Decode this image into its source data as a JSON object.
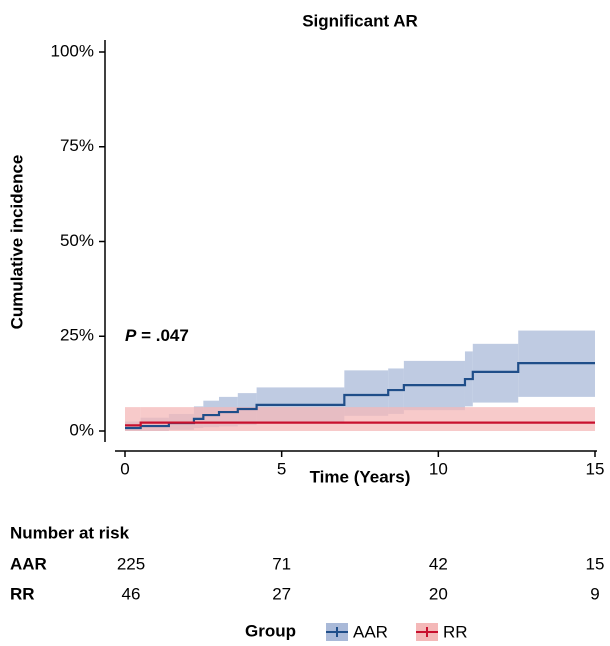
{
  "chart_data": {
    "type": "step",
    "title": "Significant AR",
    "x_label": "Time (Years)",
    "y_label": "Cumulative incidence",
    "annotation": {
      "symbol": "P",
      "text": "= .047"
    },
    "xlim": [
      0,
      15
    ],
    "xticks": [
      0,
      5,
      10,
      15
    ],
    "ylim": [
      0,
      100
    ],
    "yticks": [
      {
        "value": 0,
        "label": "0%"
      },
      {
        "value": 25,
        "label": "25%"
      },
      {
        "value": 50,
        "label": "50%"
      },
      {
        "value": 75,
        "label": "75%"
      },
      {
        "value": 100,
        "label": "100%"
      }
    ],
    "series": [
      {
        "name": "AAR",
        "color": "#1f4e89",
        "band_color": "#a9b9d8",
        "x": [
          0,
          0.5,
          1.4,
          2.2,
          2.5,
          3.0,
          3.6,
          4.2,
          7.0,
          8.4,
          8.9,
          10.85,
          11.1,
          12.55,
          15
        ],
        "values": [
          0.8,
          1.3,
          2.1,
          3.2,
          4.2,
          5.0,
          5.8,
          6.9,
          9.5,
          10.8,
          12.1,
          13.7,
          15.6,
          17.9,
          17.9
        ],
        "upper": [
          2.5,
          3.5,
          4.5,
          6.5,
          8,
          9,
          10,
          11.5,
          16,
          16.5,
          18.5,
          21,
          23,
          26.5,
          26.5
        ],
        "lower": [
          0,
          0,
          0.3,
          0.8,
          1,
          1.2,
          1.6,
          2.2,
          4,
          4.5,
          5.5,
          6.5,
          7.5,
          9,
          9
        ]
      },
      {
        "name": "RR",
        "color": "#c8102e",
        "band_color": "#f4b8b8",
        "x": [
          0,
          0.5,
          15
        ],
        "values": [
          1.5,
          2.2,
          2.2
        ],
        "upper": [
          6.3,
          6.3,
          6.3
        ],
        "lower": [
          0,
          0,
          0
        ]
      }
    ],
    "risk_table": {
      "title": "Number at risk",
      "rows": [
        {
          "name": "AAR",
          "values": [
            225,
            71,
            42,
            15
          ]
        },
        {
          "name": "RR",
          "values": [
            46,
            27,
            20,
            9
          ]
        }
      ]
    },
    "legend_title": "Group"
  }
}
